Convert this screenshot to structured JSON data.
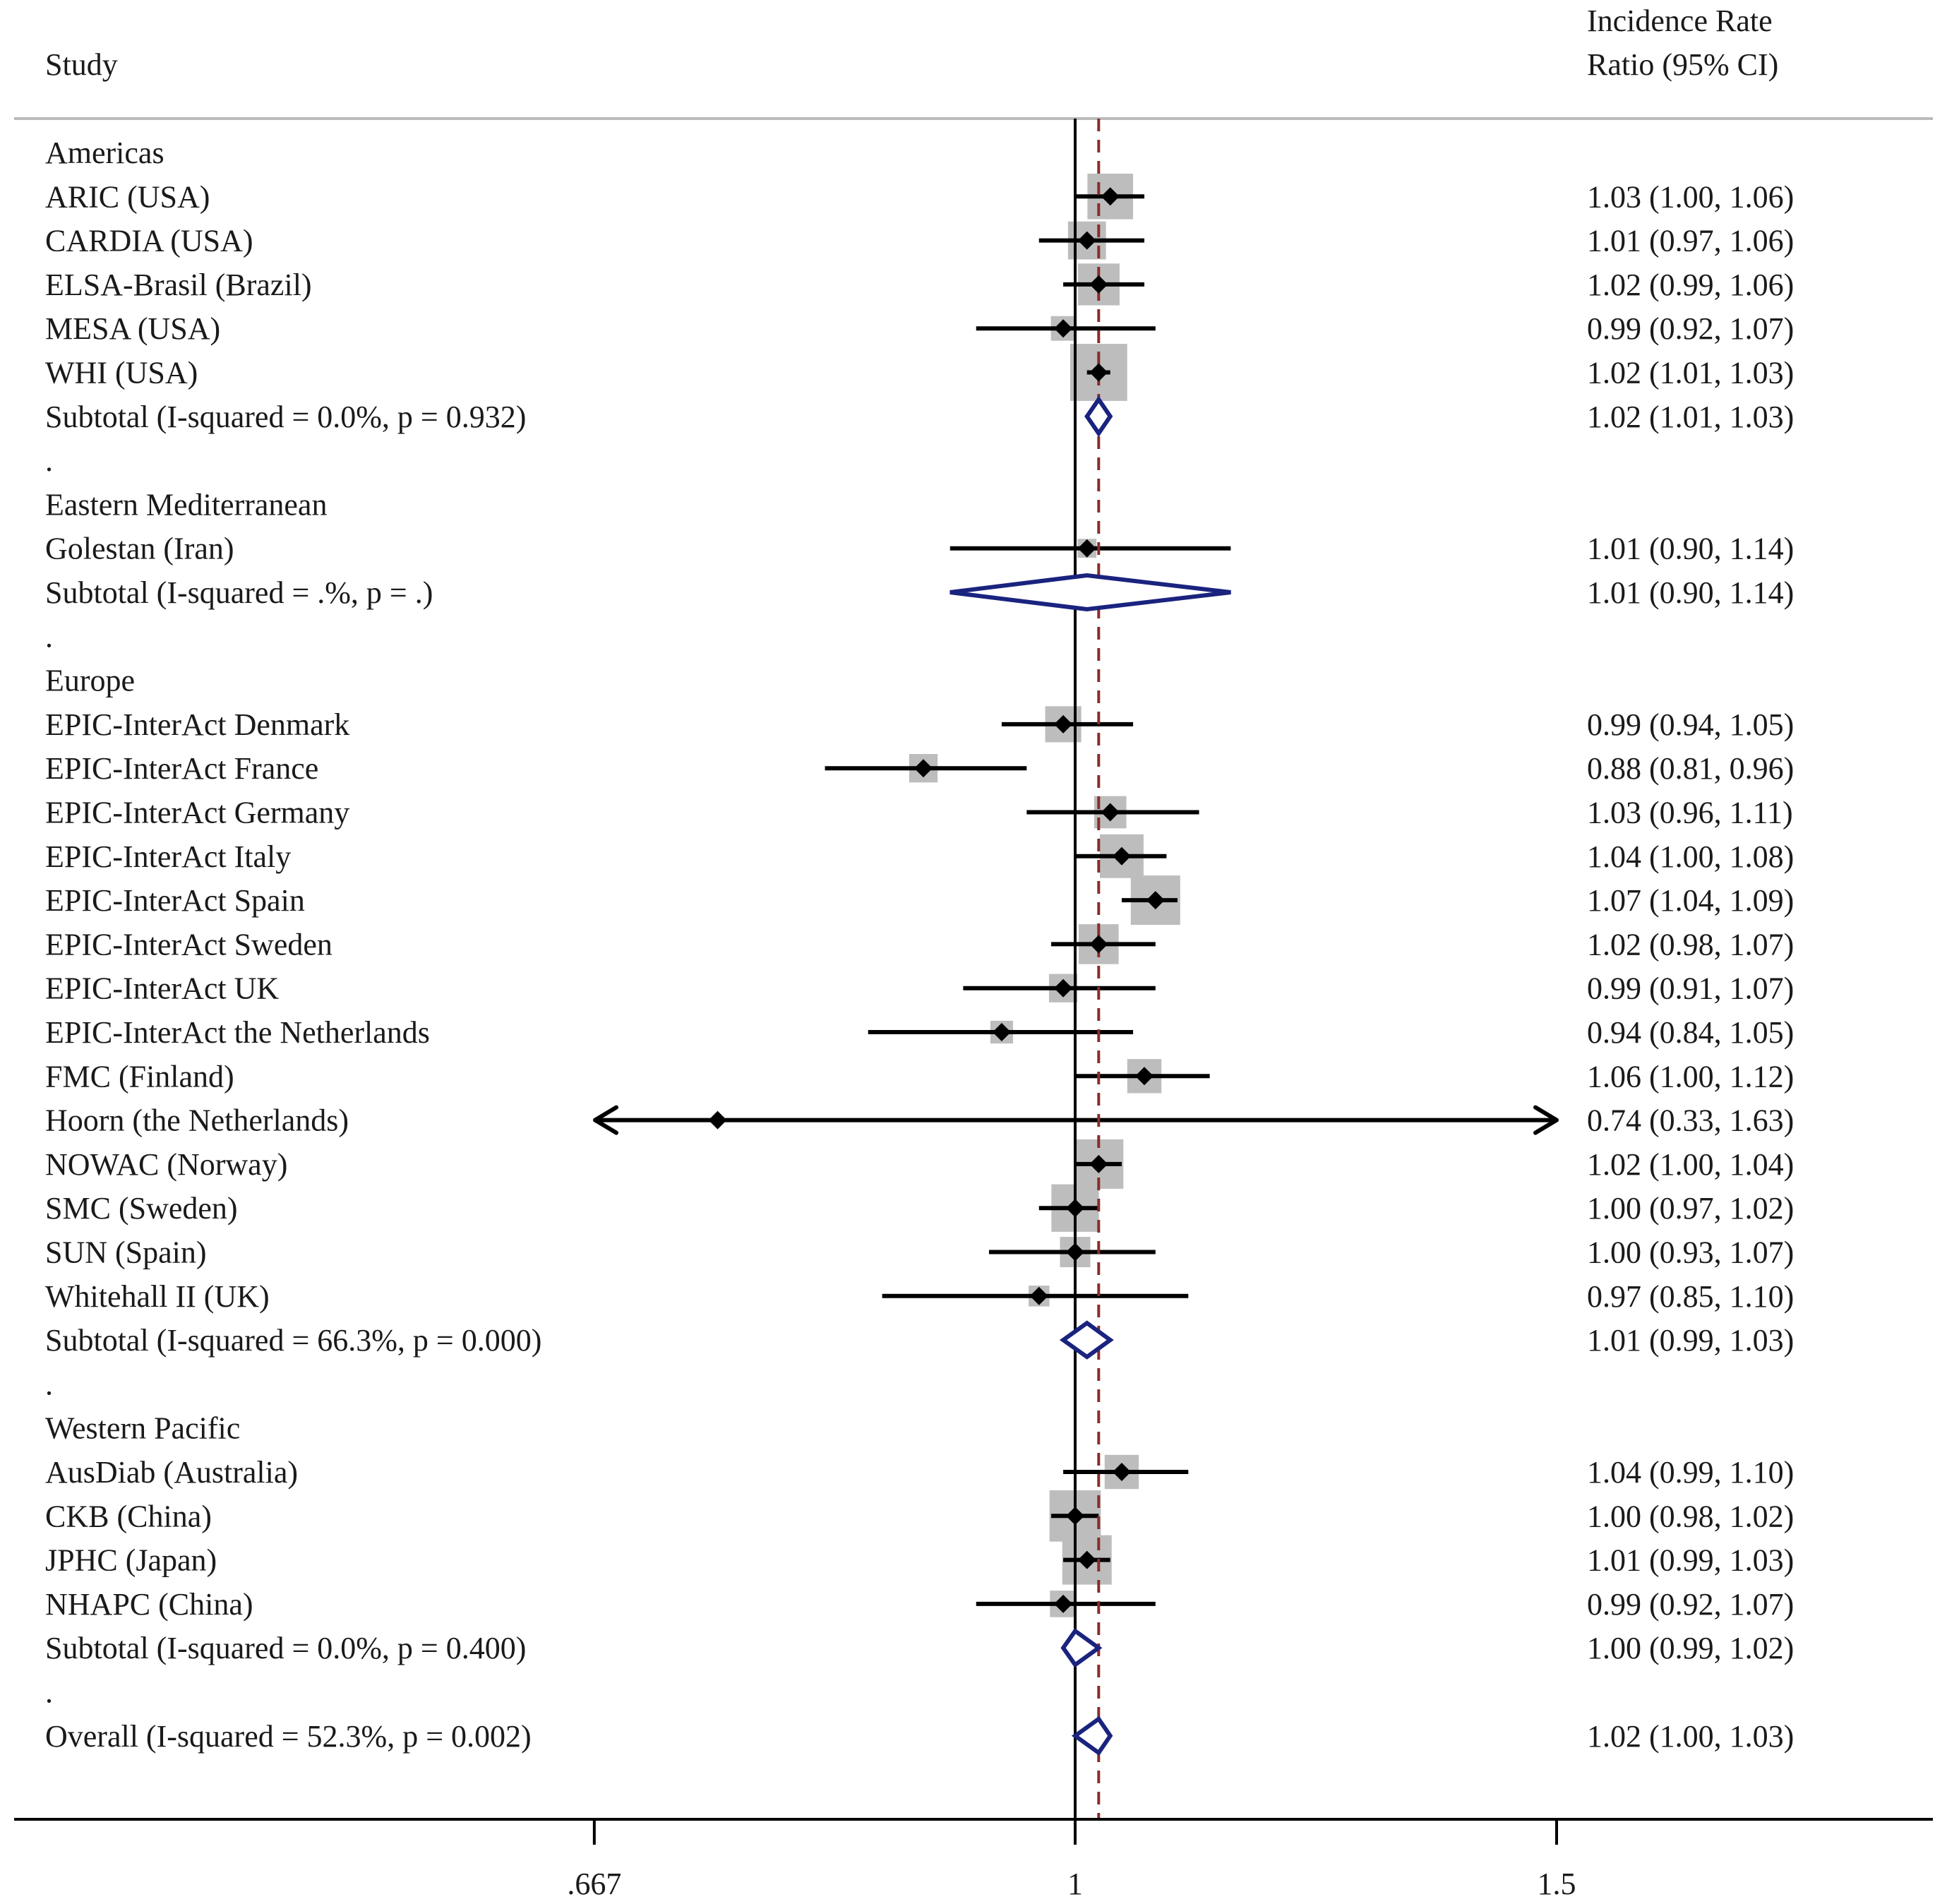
{
  "chart_data": {
    "type": "forest",
    "header": {
      "study_label": "Study",
      "effect_label_line1": "Incidence Rate",
      "effect_label_line2": "Ratio (95% CI)"
    },
    "x_axis": {
      "scale": "log",
      "ticks": [
        0.667,
        1,
        1.5
      ],
      "tick_labels": [
        ".667",
        "1",
        "1.5"
      ],
      "null_value": 1,
      "overall_reference": 1.02
    },
    "rows": [
      {
        "type": "group",
        "label": "Americas"
      },
      {
        "type": "study",
        "label": "ARIC (USA)",
        "est": 1.03,
        "lo": 1.0,
        "hi": 1.06,
        "weight": 0.9,
        "text": "1.03 (1.00, 1.06)"
      },
      {
        "type": "study",
        "label": "CARDIA (USA)",
        "est": 1.01,
        "lo": 0.97,
        "hi": 1.06,
        "weight": 0.7,
        "text": "1.01 (0.97, 1.06)"
      },
      {
        "type": "study",
        "label": "ELSA-Brasil (Brazil)",
        "est": 1.02,
        "lo": 0.99,
        "hi": 1.06,
        "weight": 0.8,
        "text": "1.02 (0.99, 1.06)"
      },
      {
        "type": "study",
        "label": "MESA (USA)",
        "est": 0.99,
        "lo": 0.92,
        "hi": 1.07,
        "weight": 0.35,
        "text": "0.99 (0.92, 1.07)"
      },
      {
        "type": "study",
        "label": "WHI (USA)",
        "est": 1.02,
        "lo": 1.01,
        "hi": 1.03,
        "weight": 1.2,
        "text": "1.02 (1.01, 1.03)"
      },
      {
        "type": "subtotal",
        "label": "Subtotal  (I-squared = 0.0%, p = 0.932)",
        "est": 1.02,
        "lo": 1.01,
        "hi": 1.03,
        "text": "1.02 (1.01, 1.03)"
      },
      {
        "type": "spacer",
        "label": "."
      },
      {
        "type": "group",
        "label": "Eastern Mediterranean"
      },
      {
        "type": "study",
        "label": "Golestan (Iran)",
        "est": 1.01,
        "lo": 0.9,
        "hi": 1.14,
        "weight": 0.2,
        "text": "1.01 (0.90, 1.14)"
      },
      {
        "type": "subtotal",
        "label": "Subtotal  (I-squared = .%, p = .)",
        "est": 1.01,
        "lo": 0.9,
        "hi": 1.14,
        "text": "1.01 (0.90, 1.14)"
      },
      {
        "type": "spacer",
        "label": "."
      },
      {
        "type": "group",
        "label": "Europe"
      },
      {
        "type": "study",
        "label": "EPIC-InterAct Denmark",
        "est": 0.99,
        "lo": 0.94,
        "hi": 1.05,
        "weight": 0.65,
        "text": "0.99 (0.94, 1.05)"
      },
      {
        "type": "study",
        "label": "EPIC-InterAct France",
        "est": 0.88,
        "lo": 0.81,
        "hi": 0.96,
        "weight": 0.45,
        "text": "0.88 (0.81, 0.96)"
      },
      {
        "type": "study",
        "label": "EPIC-InterAct Germany",
        "est": 1.03,
        "lo": 0.96,
        "hi": 1.11,
        "weight": 0.55,
        "text": "1.03 (0.96, 1.11)"
      },
      {
        "type": "study",
        "label": "EPIC-InterAct Italy",
        "est": 1.04,
        "lo": 1.0,
        "hi": 1.08,
        "weight": 0.85,
        "text": "1.04 (1.00, 1.08)"
      },
      {
        "type": "study",
        "label": "EPIC-InterAct Spain",
        "est": 1.07,
        "lo": 1.04,
        "hi": 1.09,
        "weight": 1.0,
        "text": "1.07 (1.04, 1.09)"
      },
      {
        "type": "study",
        "label": "EPIC-InterAct Sweden",
        "est": 1.02,
        "lo": 0.98,
        "hi": 1.07,
        "weight": 0.75,
        "text": "1.02 (0.98, 1.07)"
      },
      {
        "type": "study",
        "label": "EPIC-InterAct UK",
        "est": 0.99,
        "lo": 0.91,
        "hi": 1.07,
        "weight": 0.45,
        "text": "0.99 (0.91, 1.07)"
      },
      {
        "type": "study",
        "label": "EPIC-InterAct the Netherlands",
        "est": 0.94,
        "lo": 0.84,
        "hi": 1.05,
        "weight": 0.3,
        "text": "0.94 (0.84, 1.05)"
      },
      {
        "type": "study",
        "label": "FMC (Finland)",
        "est": 1.06,
        "lo": 1.0,
        "hi": 1.12,
        "weight": 0.6,
        "text": "1.06 (1.00, 1.12)"
      },
      {
        "type": "study",
        "label": "Hoorn (the Netherlands)",
        "est": 0.74,
        "lo": 0.33,
        "hi": 1.63,
        "weight": 0.05,
        "arrows": true,
        "text": "0.74 (0.33, 1.63)"
      },
      {
        "type": "study",
        "label": "NOWAC (Norway)",
        "est": 1.02,
        "lo": 1.0,
        "hi": 1.04,
        "weight": 1.0,
        "text": "1.02 (1.00, 1.04)"
      },
      {
        "type": "study",
        "label": "SMC (Sweden)",
        "est": 1.0,
        "lo": 0.97,
        "hi": 1.02,
        "weight": 0.95,
        "text": "1.00 (0.97, 1.02)"
      },
      {
        "type": "study",
        "label": "SUN (Spain)",
        "est": 1.0,
        "lo": 0.93,
        "hi": 1.07,
        "weight": 0.5,
        "text": "1.00 (0.93, 1.07)"
      },
      {
        "type": "study",
        "label": "Whitehall II (UK)",
        "est": 0.97,
        "lo": 0.85,
        "hi": 1.1,
        "weight": 0.25,
        "text": "0.97 (0.85, 1.10)"
      },
      {
        "type": "subtotal",
        "label": "Subtotal  (I-squared = 66.3%, p = 0.000)",
        "est": 1.01,
        "lo": 0.99,
        "hi": 1.03,
        "text": "1.01 (0.99, 1.03)"
      },
      {
        "type": "spacer",
        "label": "."
      },
      {
        "type": "group",
        "label": "Western Pacific"
      },
      {
        "type": "study",
        "label": "AusDiab (Australia)",
        "est": 1.04,
        "lo": 0.99,
        "hi": 1.1,
        "weight": 0.6,
        "text": "1.04 (0.99, 1.10)"
      },
      {
        "type": "study",
        "label": "CKB (China)",
        "est": 1.0,
        "lo": 0.98,
        "hi": 1.02,
        "weight": 1.05,
        "text": "1.00 (0.98, 1.02)"
      },
      {
        "type": "study",
        "label": "JPHC (Japan)",
        "est": 1.01,
        "lo": 0.99,
        "hi": 1.03,
        "weight": 1.0,
        "text": "1.01 (0.99, 1.03)"
      },
      {
        "type": "study",
        "label": "NHAPC (China)",
        "est": 0.99,
        "lo": 0.92,
        "hi": 1.07,
        "weight": 0.4,
        "text": "0.99 (0.92, 1.07)"
      },
      {
        "type": "subtotal",
        "label": "Subtotal  (I-squared = 0.0%, p = 0.400)",
        "est": 1.0,
        "lo": 0.99,
        "hi": 1.02,
        "text": "1.00 (0.99, 1.02)"
      },
      {
        "type": "spacer",
        "label": "."
      },
      {
        "type": "overall",
        "label": "Overall  (I-squared = 52.3%, p = 0.002)",
        "est": 1.02,
        "lo": 1.0,
        "hi": 1.03,
        "text": "1.02 (1.00, 1.03)"
      }
    ],
    "colors": {
      "text": "#1a1a1a",
      "axis": "#000000",
      "marker": "#000000",
      "weight_box": "#bdbdbd",
      "diamond": "#1a237e",
      "overall_line": "#8b2b2b",
      "header_rule": "#bbbbbb"
    }
  }
}
